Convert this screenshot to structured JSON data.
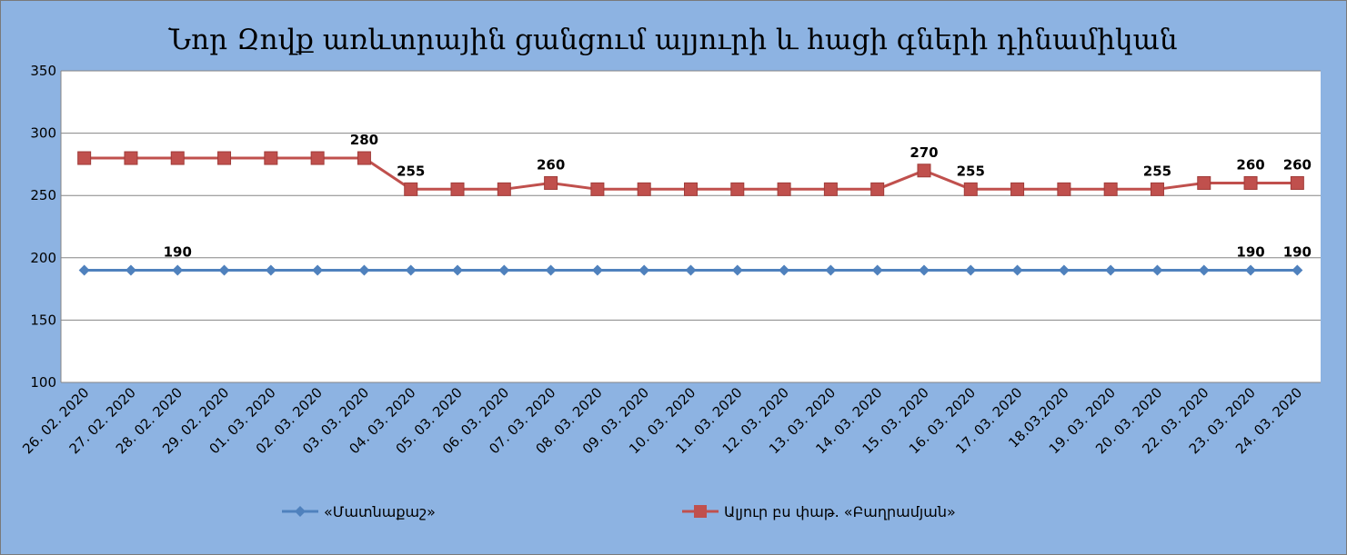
{
  "chart_data": {
    "type": "line",
    "title": "Նոր Զովք  առևտրային ցանցում ալյուրի և հացի գների դինամիկան",
    "xlabel": "",
    "ylabel": "",
    "ylim": [
      100,
      350
    ],
    "yticks": [
      100,
      150,
      200,
      250,
      300,
      350
    ],
    "grid": true,
    "legend_position": "bottom",
    "categories": [
      "26. 02. 2020",
      "27. 02. 2020",
      "28. 02. 2020",
      "29. 02. 2020",
      "01. 03. 2020",
      "02. 03. 2020",
      "03. 03. 2020",
      "04. 03. 2020",
      "05. 03. 2020",
      "06. 03. 2020",
      "07. 03. 2020",
      "08. 03. 2020",
      "09. 03. 2020",
      "10. 03. 2020",
      "11. 03. 2020",
      "12. 03. 2020",
      "13. 03. 2020",
      "14. 03. 2020",
      "15. 03. 2020",
      "16. 03. 2020",
      "17. 03. 2020",
      "18.03.2020",
      "19. 03. 2020",
      "20. 03. 2020",
      "22. 03. 2020",
      "23. 03. 2020",
      "24. 03. 2020"
    ],
    "series": [
      {
        "name": "«Մատնաքաշ»",
        "color": "#4f81bd",
        "marker": "diamond",
        "values": [
          190,
          190,
          190,
          190,
          190,
          190,
          190,
          190,
          190,
          190,
          190,
          190,
          190,
          190,
          190,
          190,
          190,
          190,
          190,
          190,
          190,
          190,
          190,
          190,
          190,
          190,
          190
        ],
        "labeled_indices": [
          2,
          25,
          26
        ]
      },
      {
        "name": "Ալյուր բս փաթ. «Բաղրամյան»",
        "color": "#c0504d",
        "marker": "square",
        "values": [
          280,
          280,
          280,
          280,
          280,
          280,
          280,
          255,
          255,
          255,
          260,
          255,
          255,
          255,
          255,
          255,
          255,
          255,
          270,
          255,
          255,
          255,
          255,
          255,
          260,
          260,
          260
        ],
        "labeled_indices": [
          6,
          7,
          10,
          18,
          19,
          23,
          25,
          26
        ]
      }
    ]
  }
}
